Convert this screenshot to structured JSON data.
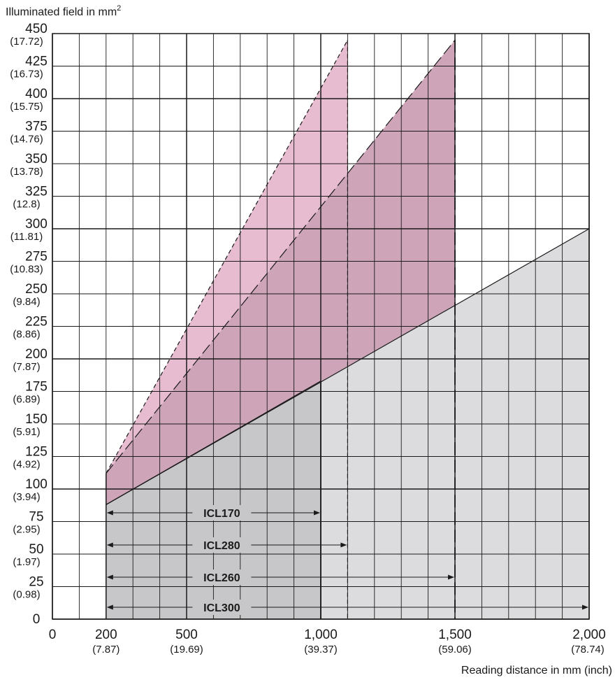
{
  "chart_data": {
    "type": "area",
    "title": "",
    "ylabel": "Illuminated field in mm",
    "ylabel_sup": "2",
    "xlabel": "Reading distance in mm (inch)",
    "xlim": [
      0,
      2000
    ],
    "ylim": [
      0,
      450
    ],
    "grid": true,
    "y_ticks": [
      {
        "value": 0,
        "label": "0",
        "sub": ""
      },
      {
        "value": 25,
        "label": "25",
        "sub": "(0.98)"
      },
      {
        "value": 50,
        "label": "50",
        "sub": "(1.97)"
      },
      {
        "value": 75,
        "label": "75",
        "sub": "(2.95)"
      },
      {
        "value": 100,
        "label": "100",
        "sub": "(3.94)"
      },
      {
        "value": 125,
        "label": "125",
        "sub": "(4.92)"
      },
      {
        "value": 150,
        "label": "150",
        "sub": "(5.91)"
      },
      {
        "value": 175,
        "label": "175",
        "sub": "(6.89)"
      },
      {
        "value": 200,
        "label": "200",
        "sub": "(7.87)"
      },
      {
        "value": 225,
        "label": "225",
        "sub": "(8.86)"
      },
      {
        "value": 250,
        "label": "250",
        "sub": "(9.84)"
      },
      {
        "value": 275,
        "label": "275",
        "sub": "(10.83)"
      },
      {
        "value": 300,
        "label": "300",
        "sub": "(11.81)"
      },
      {
        "value": 325,
        "label": "325",
        "sub": "(12.8)"
      },
      {
        "value": 350,
        "label": "350",
        "sub": "(13.78)"
      },
      {
        "value": 375,
        "label": "375",
        "sub": "(14.76)"
      },
      {
        "value": 400,
        "label": "400",
        "sub": "(15.75)"
      },
      {
        "value": 425,
        "label": "425",
        "sub": "(16.73)"
      },
      {
        "value": 450,
        "label": "450",
        "sub": "(17.72)"
      }
    ],
    "x_ticks": [
      {
        "value": 0,
        "label": "0",
        "sub": ""
      },
      {
        "value": 200,
        "label": "200",
        "sub": "(7.87)"
      },
      {
        "value": 500,
        "label": "500",
        "sub": "(19.69)"
      },
      {
        "value": 1000,
        "label": "1,000",
        "sub": "(39.37)"
      },
      {
        "value": 1500,
        "label": "1,500",
        "sub": "(59.06)"
      },
      {
        "value": 2000,
        "label": "2,000",
        "sub": "(78.74)"
      }
    ],
    "series": [
      {
        "name": "ICL170",
        "x_range": [
          200,
          1000
        ],
        "line": "solid",
        "fill": "#c7c7c9",
        "points": [
          [
            200,
            88
          ],
          [
            1000,
            183
          ]
        ]
      },
      {
        "name": "ICL300",
        "x_range": [
          200,
          2000
        ],
        "line": "solid",
        "fill": "#dcdcde",
        "points": [
          [
            200,
            88
          ],
          [
            2000,
            300
          ]
        ]
      },
      {
        "name": "ICL260",
        "x_range": [
          200,
          1500
        ],
        "line": "long-dash",
        "fill": "#cda4b8",
        "points": [
          [
            200,
            112
          ],
          [
            1500,
            445
          ]
        ]
      },
      {
        "name": "ICL280",
        "x_range": [
          200,
          1100
        ],
        "line": "short-dash",
        "fill": "#e7bcd0",
        "points": [
          [
            200,
            112
          ],
          [
            1100,
            445
          ]
        ]
      }
    ]
  }
}
